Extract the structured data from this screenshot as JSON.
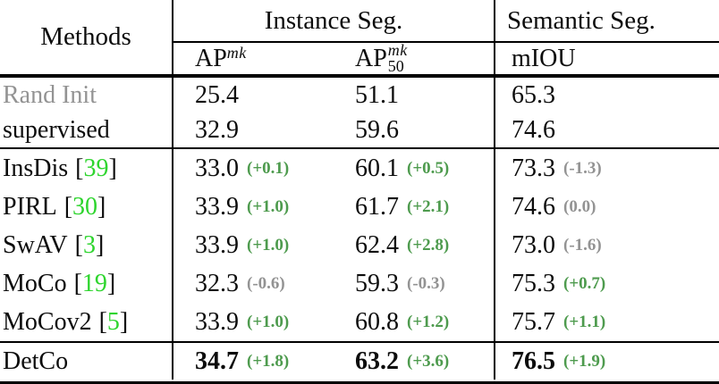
{
  "table": {
    "colors": {
      "cite_green": "#2ed52e",
      "delta_green": "#4e9b4e",
      "muted_gray": "#939393"
    },
    "marks": {
      "open": "[",
      "close": "]"
    },
    "headers": {
      "methods": "Methods",
      "instance_group": "Instance Seg.",
      "semantic_group": "Semantic Seg.",
      "ap_base": "AP",
      "ap_sup": "mk",
      "ap50_base": "AP",
      "ap50_sup": "mk",
      "ap50_sub": "50",
      "miou": "mIOU"
    },
    "rows": [
      {
        "method": "Rand Init",
        "name_tone": "gray",
        "ap": {
          "value": "25.4"
        },
        "ap50": {
          "value": "51.1"
        },
        "miou": {
          "value": "65.3"
        }
      },
      {
        "method": "supervised",
        "ap": {
          "value": "32.9"
        },
        "ap50": {
          "value": "59.6"
        },
        "miou": {
          "value": "74.6"
        }
      },
      {
        "method": "InsDis",
        "cite": "39",
        "ap": {
          "value": "33.0",
          "delta": "(+0.1)",
          "tone": "green"
        },
        "ap50": {
          "value": "60.1",
          "delta": "(+0.5)",
          "tone": "green"
        },
        "miou": {
          "value": "73.3",
          "delta": "(-1.3)",
          "tone": "gray"
        }
      },
      {
        "method": "PIRL",
        "cite": "30",
        "ap": {
          "value": "33.9",
          "delta": "(+1.0)",
          "tone": "green"
        },
        "ap50": {
          "value": "61.7",
          "delta": "(+2.1)",
          "tone": "green"
        },
        "miou": {
          "value": "74.6",
          "delta": "(0.0)",
          "tone": "gray"
        }
      },
      {
        "method": "SwAV",
        "cite": "3",
        "ap": {
          "value": "33.9",
          "delta": "(+1.0)",
          "tone": "green"
        },
        "ap50": {
          "value": "62.4",
          "delta": "(+2.8)",
          "tone": "green"
        },
        "miou": {
          "value": "73.0",
          "delta": "(-1.6)",
          "tone": "gray"
        }
      },
      {
        "method": "MoCo",
        "cite": "19",
        "ap": {
          "value": "32.3",
          "delta": "(-0.6)",
          "tone": "gray"
        },
        "ap50": {
          "value": "59.3",
          "delta": "(-0.3)",
          "tone": "gray"
        },
        "miou": {
          "value": "75.3",
          "delta": "(+0.7)",
          "tone": "green"
        }
      },
      {
        "method": "MoCov2",
        "cite": "5",
        "ap": {
          "value": "33.9",
          "delta": "(+1.0)",
          "tone": "green"
        },
        "ap50": {
          "value": "60.8",
          "delta": "(+1.2)",
          "tone": "green"
        },
        "miou": {
          "value": "75.7",
          "delta": "(+1.1)",
          "tone": "green"
        }
      },
      {
        "method": "DetCo",
        "ap": {
          "value": "34.7",
          "delta": "(+1.8)",
          "tone": "green"
        },
        "ap50": {
          "value": "63.2",
          "delta": "(+3.6)",
          "tone": "green"
        },
        "miou": {
          "value": "76.5",
          "delta": "(+1.9)",
          "tone": "green"
        }
      }
    ]
  }
}
